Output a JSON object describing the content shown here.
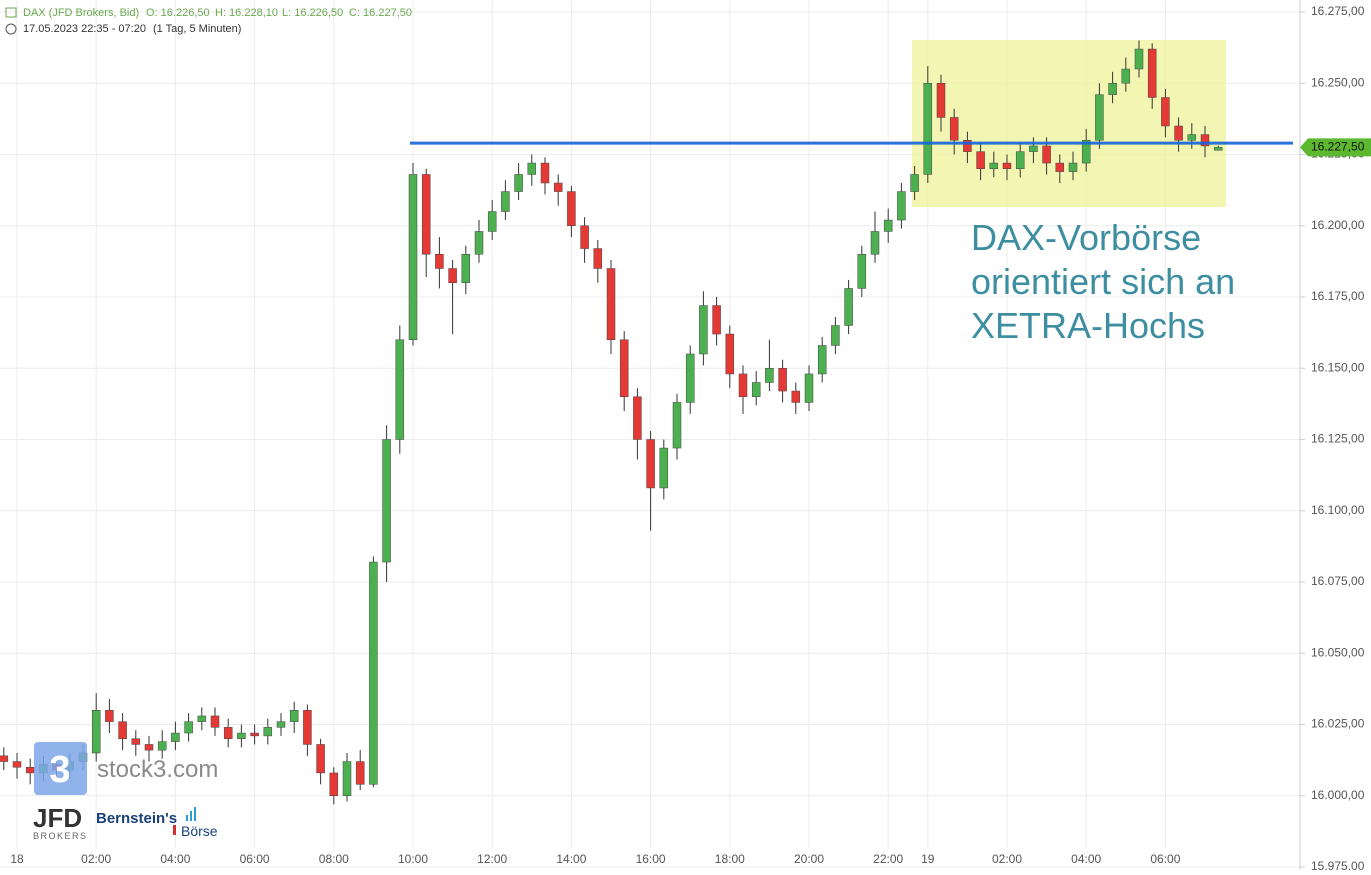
{
  "header": {
    "instrument": "DAX (JFD Brokers, Bid)",
    "open": "O: 16.226,50",
    "high": "H: 16.228,10",
    "low": "L: 16.226,50",
    "close": "C: 16.227,50",
    "period": "17.05.2023 22:35 - 07:20",
    "resolution": "(1 Tag, 5 Minuten)"
  },
  "watermarks": {
    "stock3_glyph": "3",
    "stock3": "stock3.com",
    "jfd": "JFD",
    "jfd_sub": "BROKERS",
    "bernstein": "Bernstein's",
    "boerse": "Börse"
  },
  "chart_data": {
    "type": "candlestick",
    "annotation": [
      "DAX-Vorbörse",
      "orientiert sich an",
      "XETRA-Hochs"
    ],
    "up_color": "#4caf50",
    "down_color": "#e53935",
    "wick_color": "#333333",
    "grid": true,
    "hline": {
      "value": 16229,
      "color": "#1565d8"
    },
    "price_marker": {
      "value": 16227.5,
      "label": "16.227,50",
      "color": "#5cb82e"
    },
    "ylim": [
      15975,
      16275
    ],
    "yticks": [
      {
        "value": 15975,
        "label": "15.975,00"
      },
      {
        "value": 16000,
        "label": "16.000,00"
      },
      {
        "value": 16025,
        "label": "16.025,00"
      },
      {
        "value": 16050,
        "label": "16.050,00"
      },
      {
        "value": 16075,
        "label": "16.075,00"
      },
      {
        "value": 16100,
        "label": "16.100,00"
      },
      {
        "value": 16125,
        "label": "16.125,00"
      },
      {
        "value": 16150,
        "label": "16.150,00"
      },
      {
        "value": 16175,
        "label": "16.175,00"
      },
      {
        "value": 16200,
        "label": "16.200,00"
      },
      {
        "value": 16225,
        "label": "16.225,00"
      },
      {
        "value": 16250,
        "label": "16.250,00"
      },
      {
        "value": 16275,
        "label": "16.275,00"
      }
    ],
    "categories": [
      null,
      "18",
      null,
      null,
      null,
      null,
      null,
      "02:00",
      null,
      null,
      null,
      null,
      null,
      "04:00",
      null,
      null,
      null,
      null,
      null,
      "06:00",
      null,
      null,
      null,
      null,
      null,
      "08:00",
      null,
      null,
      null,
      null,
      null,
      "10:00",
      null,
      null,
      null,
      null,
      null,
      "12:00",
      null,
      null,
      null,
      null,
      null,
      "14:00",
      null,
      null,
      null,
      null,
      null,
      "16:00",
      null,
      null,
      null,
      null,
      null,
      "18:00",
      null,
      null,
      null,
      null,
      null,
      "20:00",
      null,
      null,
      null,
      null,
      null,
      "22:00",
      null,
      null,
      "19",
      null,
      null,
      null,
      null,
      null,
      "02:00",
      null,
      null,
      null,
      null,
      null,
      "04:00",
      null,
      null,
      null,
      null,
      null,
      "06:00",
      null,
      null,
      null,
      null
    ],
    "open": [
      16014,
      16012,
      16010,
      16008,
      16011,
      16009,
      16012,
      16015,
      16030,
      16026,
      16020,
      16018,
      16016,
      16019,
      16022,
      16026,
      16028,
      16024,
      16020,
      16022,
      16021,
      16024,
      16026,
      16030,
      16018,
      16008,
      16000,
      16012,
      16004,
      16082,
      16125,
      16160,
      16218,
      16190,
      16185,
      16180,
      16190,
      16198,
      16205,
      16212,
      16218,
      16222,
      16215,
      16212,
      16200,
      16192,
      16185,
      16160,
      16140,
      16125,
      16108,
      16122,
      16138,
      16155,
      16172,
      16162,
      16148,
      16140,
      16145,
      16150,
      16142,
      16138,
      16148,
      16158,
      16165,
      16178,
      16190,
      16198,
      16202,
      16212,
      16218,
      16250,
      16238,
      16230,
      16226,
      16220,
      16222,
      16220,
      16226,
      16228,
      16222,
      16219,
      16222,
      16230,
      16246,
      16250,
      16255,
      16262,
      16245,
      16235,
      16230,
      16232,
      16226.5
    ],
    "high": [
      16017,
      16015,
      16013,
      16014,
      16014,
      16015,
      16018,
      16036,
      16034,
      16029,
      16023,
      16021,
      16023,
      16026,
      16029,
      16031,
      16031,
      16027,
      16025,
      16025,
      16027,
      16029,
      16033,
      16032,
      16020,
      16010,
      16015,
      16016,
      16084,
      16130,
      16165,
      16222,
      16220,
      16196,
      16188,
      16193,
      16202,
      16209,
      16216,
      16222,
      16225,
      16224,
      16218,
      16214,
      16203,
      16195,
      16188,
      16163,
      16143,
      16128,
      16125,
      16141,
      16158,
      16177,
      16175,
      16165,
      16151,
      16149,
      16160,
      16153,
      16145,
      16151,
      16161,
      16168,
      16181,
      16193,
      16205,
      16206,
      16215,
      16221,
      16256,
      16253,
      16241,
      16233,
      16229,
      16226,
      16225,
      16229,
      16231,
      16231,
      16225,
      16226,
      16234,
      16250,
      16254,
      16259,
      16265,
      16264,
      16248,
      16238,
      16236,
      16235,
      16228.1
    ],
    "low": [
      16009,
      16006,
      16004,
      16005,
      16006,
      16006,
      16009,
      16012,
      16022,
      16016,
      16014,
      16012,
      16013,
      16016,
      16019,
      16023,
      16021,
      16017,
      16017,
      16018,
      16018,
      16021,
      16022,
      16014,
      16004,
      15997,
      15998,
      16002,
      16003,
      16075,
      16120,
      16158,
      16182,
      16178,
      16162,
      16176,
      16187,
      16195,
      16202,
      16209,
      16214,
      16211,
      16207,
      16196,
      16187,
      16180,
      16155,
      16135,
      16118,
      16093,
      16104,
      16118,
      16134,
      16151,
      16158,
      16143,
      16134,
      16137,
      16142,
      16138,
      16134,
      16135,
      16145,
      16155,
      16162,
      16175,
      16187,
      16194,
      16199,
      16209,
      16215,
      16233,
      16225,
      16222,
      16216,
      16217,
      16216,
      16217,
      16222,
      16218,
      16215,
      16216,
      16219,
      16227,
      16243,
      16247,
      16252,
      16241,
      16231,
      16226,
      16227,
      16224,
      16226.5
    ],
    "close": [
      16012,
      16010,
      16008,
      16011,
      16009,
      16012,
      16015,
      16030,
      16026,
      16020,
      16018,
      16016,
      16019,
      16022,
      16026,
      16028,
      16024,
      16020,
      16022,
      16021,
      16024,
      16026,
      16030,
      16018,
      16008,
      16000,
      16012,
      16004,
      16082,
      16125,
      16160,
      16218,
      16190,
      16185,
      16180,
      16190,
      16198,
      16205,
      16212,
      16218,
      16222,
      16215,
      16212,
      16200,
      16192,
      16185,
      16160,
      16140,
      16125,
      16108,
      16122,
      16138,
      16155,
      16172,
      16162,
      16148,
      16140,
      16145,
      16150,
      16142,
      16138,
      16148,
      16158,
      16165,
      16178,
      16190,
      16198,
      16202,
      16212,
      16218,
      16250,
      16238,
      16230,
      16226,
      16220,
      16222,
      16220,
      16226,
      16228,
      16222,
      16219,
      16222,
      16230,
      16246,
      16250,
      16255,
      16262,
      16245,
      16235,
      16230,
      16232,
      16228,
      16227.5
    ]
  }
}
